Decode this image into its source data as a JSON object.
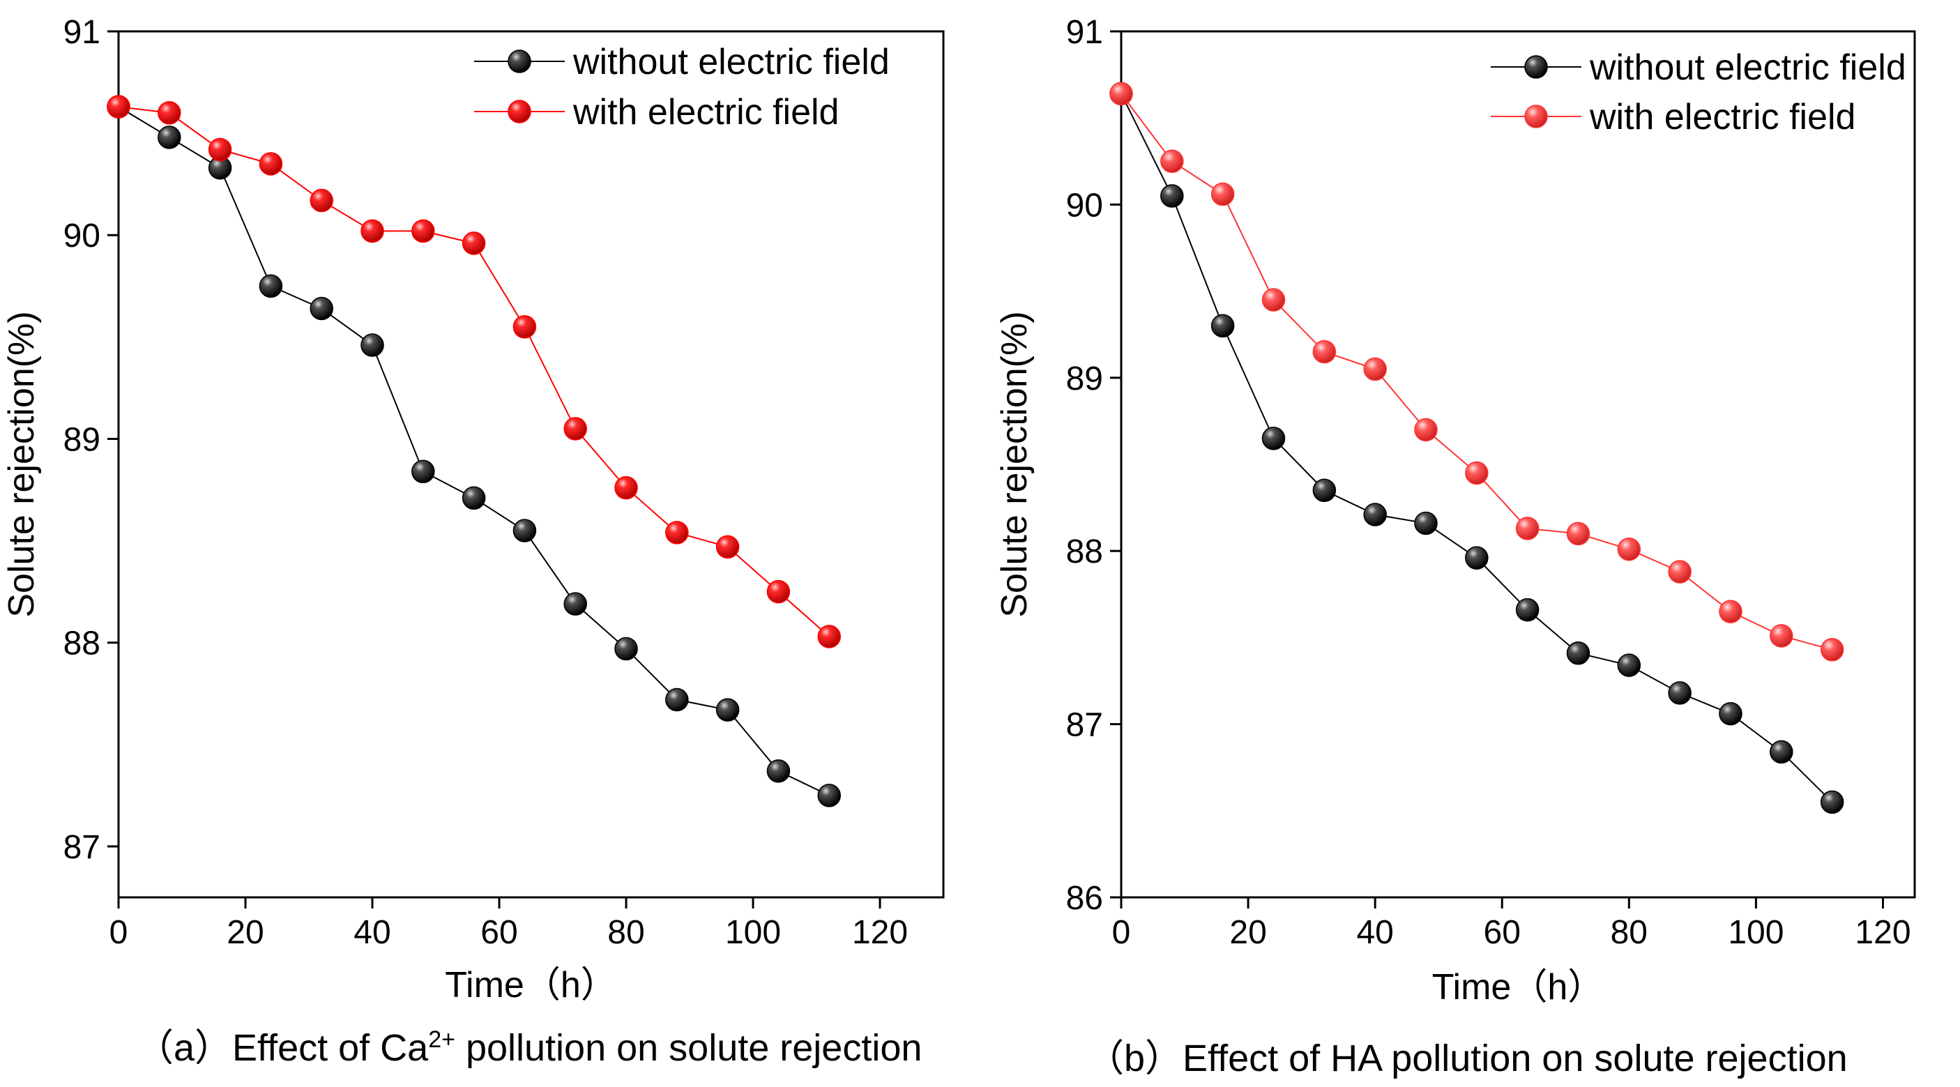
{
  "chart_data": [
    {
      "type": "line",
      "title": "",
      "xlabel": "Time（h）",
      "ylabel": "Solute rejection(%)",
      "xlim": [
        0,
        130
      ],
      "ylim": [
        86.75,
        91
      ],
      "xticks": [
        0,
        20,
        40,
        60,
        80,
        100,
        120
      ],
      "yticks": [
        87,
        88,
        89,
        90,
        91
      ],
      "legend_position": "top-right",
      "x": [
        0,
        8,
        16,
        24,
        32,
        40,
        48,
        56,
        64,
        72,
        80,
        88,
        96,
        104,
        112
      ],
      "series": [
        {
          "name": "without electric field",
          "color": "#000000",
          "values": [
            90.63,
            90.48,
            90.33,
            89.75,
            89.64,
            89.46,
            88.84,
            88.71,
            88.55,
            88.19,
            87.97,
            87.72,
            87.67,
            87.37,
            87.25
          ]
        },
        {
          "name": "with electric field",
          "color": "#ff0000",
          "values": [
            90.63,
            90.6,
            90.42,
            90.35,
            90.17,
            90.02,
            90.02,
            89.96,
            89.55,
            89.05,
            88.76,
            88.54,
            88.47,
            88.25,
            88.03
          ]
        }
      ],
      "caption": {
        "prefix": "（a）Effect of Ca",
        "superscript": "2+",
        "suffix": " pollution on solute rejection"
      }
    },
    {
      "type": "line",
      "title": "",
      "xlabel": "Time（h）",
      "ylabel": "Solute rejection(%)",
      "xlim": [
        0,
        125
      ],
      "ylim": [
        86,
        91
      ],
      "xticks": [
        0,
        20,
        40,
        60,
        80,
        100,
        120
      ],
      "yticks": [
        86,
        87,
        88,
        89,
        90,
        91
      ],
      "legend_position": "top-right",
      "x": [
        0,
        8,
        16,
        24,
        32,
        40,
        48,
        56,
        64,
        72,
        80,
        88,
        96,
        104,
        112
      ],
      "series": [
        {
          "name": "without electric field",
          "color": "#000000",
          "values": [
            90.64,
            90.05,
            89.3,
            88.65,
            88.35,
            88.21,
            88.16,
            87.96,
            87.66,
            87.41,
            87.34,
            87.18,
            87.06,
            86.84,
            86.55
          ]
        },
        {
          "name": "with electric field",
          "color": "#ff3333",
          "values": [
            90.64,
            90.25,
            90.06,
            89.45,
            89.15,
            89.05,
            88.7,
            88.45,
            88.13,
            88.1,
            88.01,
            87.88,
            87.65,
            87.51,
            87.43
          ]
        }
      ],
      "caption": {
        "prefix": "（b）Effect of HA pollution on solute rejection",
        "superscript": "",
        "suffix": ""
      }
    }
  ]
}
